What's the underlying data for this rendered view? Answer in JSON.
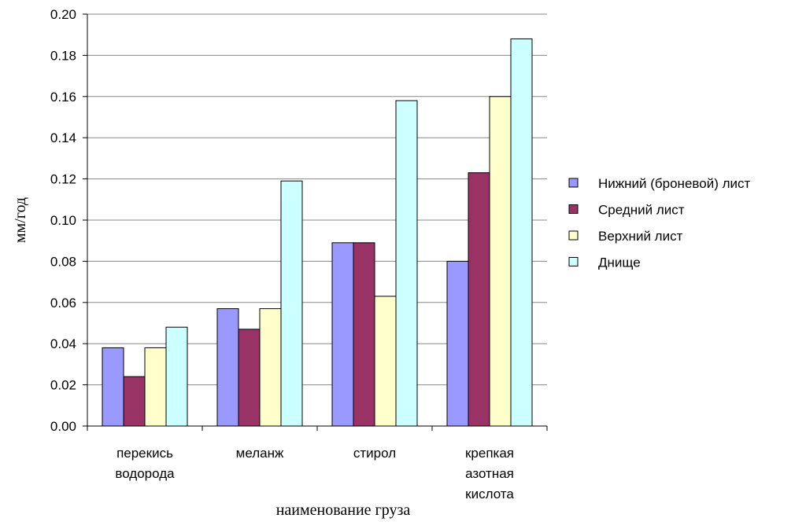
{
  "chart_data": {
    "type": "bar",
    "x_label": "наименование груза",
    "y_label": "мм/год",
    "categories": [
      "перекись водорода",
      "меланж",
      "стирол",
      "крепкая азотная кислота"
    ],
    "series": [
      {
        "name": "Нижний (броневой) лист",
        "color": "#9999ff",
        "values": [
          0.038,
          0.057,
          0.089,
          0.08
        ]
      },
      {
        "name": "Средний лист",
        "color": "#993366",
        "values": [
          0.024,
          0.047,
          0.089,
          0.123
        ]
      },
      {
        "name": "Верхний лист",
        "color": "#ffffcc",
        "values": [
          0.038,
          0.057,
          0.063,
          0.16
        ]
      },
      {
        "name": "Днище",
        "color": "#ccffff",
        "values": [
          0.048,
          0.119,
          0.158,
          0.188
        ]
      }
    ],
    "ylim": [
      0,
      0.2
    ],
    "yticks": [
      {
        "value": 0,
        "label": "0.00"
      },
      {
        "value": 0.02,
        "label": "0.02"
      },
      {
        "value": 0.04,
        "label": "0.04"
      },
      {
        "value": 0.06,
        "label": "0.06"
      },
      {
        "value": 0.08,
        "label": "0.08"
      },
      {
        "value": 0.1,
        "label": "0.10"
      },
      {
        "value": 0.12,
        "label": "0.12"
      },
      {
        "value": 0.14,
        "label": "0.14"
      },
      {
        "value": 0.16,
        "label": "0.16"
      },
      {
        "value": 0.18,
        "label": "0.18"
      },
      {
        "value": 0.2,
        "label": "0.20"
      }
    ],
    "grid": true,
    "legend": "right"
  }
}
